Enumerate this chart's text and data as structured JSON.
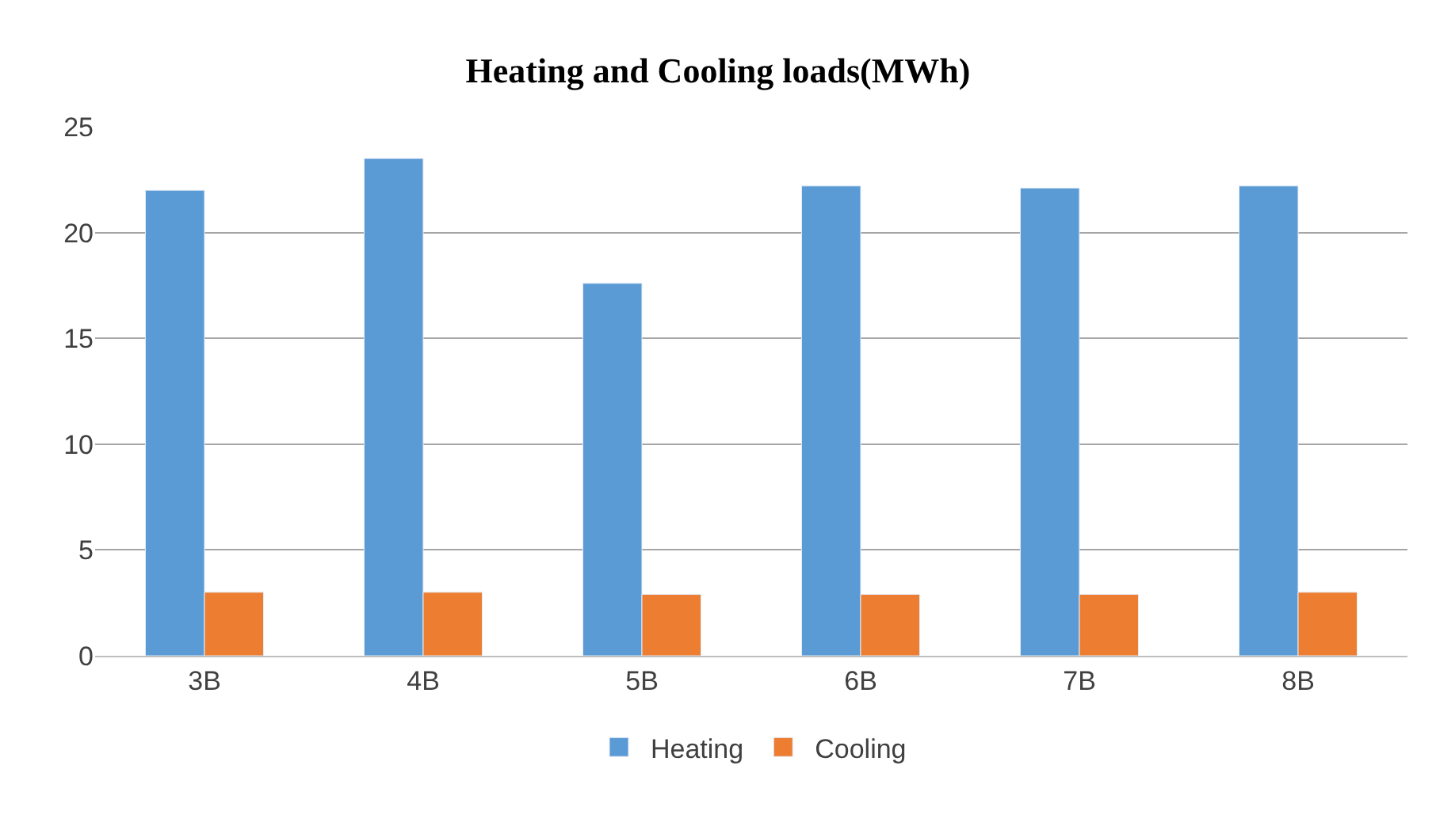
{
  "chart_data": {
    "type": "bar",
    "title": "Heating and Cooling loads(MWh)",
    "categories": [
      "3B",
      "4B",
      "5B",
      "6B",
      "7B",
      "8B"
    ],
    "series": [
      {
        "name": "Heating",
        "color": "#5b9bd5",
        "values": [
          22.0,
          23.5,
          17.6,
          22.2,
          22.1,
          22.2
        ]
      },
      {
        "name": "Cooling",
        "color": "#ed7d31",
        "values": [
          3.0,
          3.0,
          2.9,
          2.9,
          2.9,
          3.0
        ]
      }
    ],
    "ylim": [
      0,
      25
    ],
    "yticks": [
      0,
      5,
      10,
      15,
      20,
      25
    ],
    "grid": "y",
    "legend": "bottom"
  }
}
